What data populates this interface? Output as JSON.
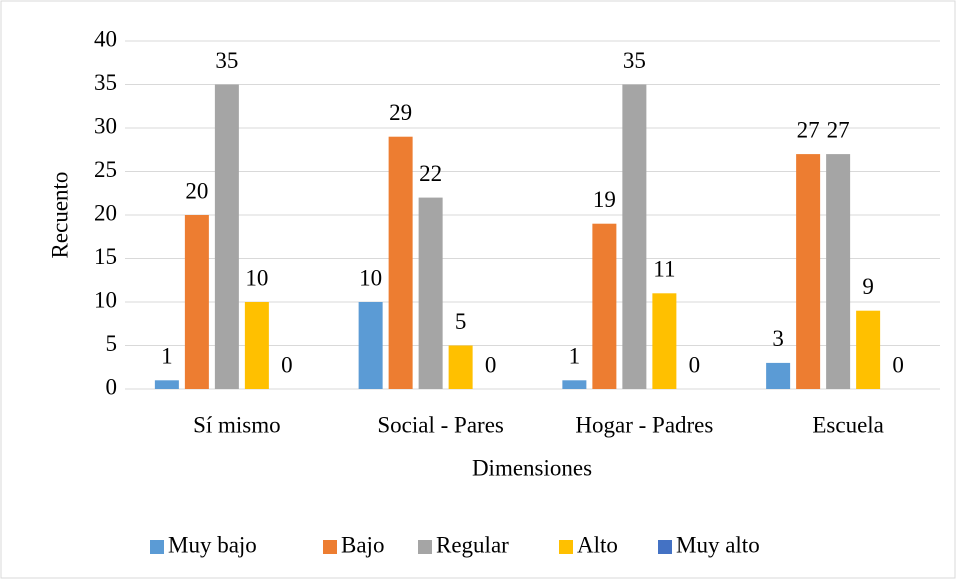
{
  "chart_data": {
    "type": "bar",
    "x_label": "Dimensiones",
    "y_label": "Recuento",
    "categories": [
      "Sí mismo",
      "Social - Pares",
      "Hogar - Padres",
      "Escuela"
    ],
    "series": [
      {
        "name": "Muy bajo",
        "color": "#5b9bd5",
        "values": [
          1,
          10,
          1,
          3
        ]
      },
      {
        "name": "Bajo",
        "color": "#ed7d31",
        "values": [
          20,
          29,
          19,
          27
        ]
      },
      {
        "name": "Regular",
        "color": "#a5a5a5",
        "values": [
          35,
          22,
          35,
          27
        ]
      },
      {
        "name": "Alto",
        "color": "#ffc000",
        "values": [
          10,
          5,
          11,
          9
        ]
      },
      {
        "name": "Muy alto",
        "color": "#4472c4",
        "values": [
          0,
          0,
          0,
          0
        ]
      }
    ],
    "ylim": [
      0,
      40
    ],
    "yticks": [
      0,
      5,
      10,
      15,
      20,
      25,
      30,
      35,
      40
    ],
    "grid": true,
    "legend": "bottom"
  }
}
